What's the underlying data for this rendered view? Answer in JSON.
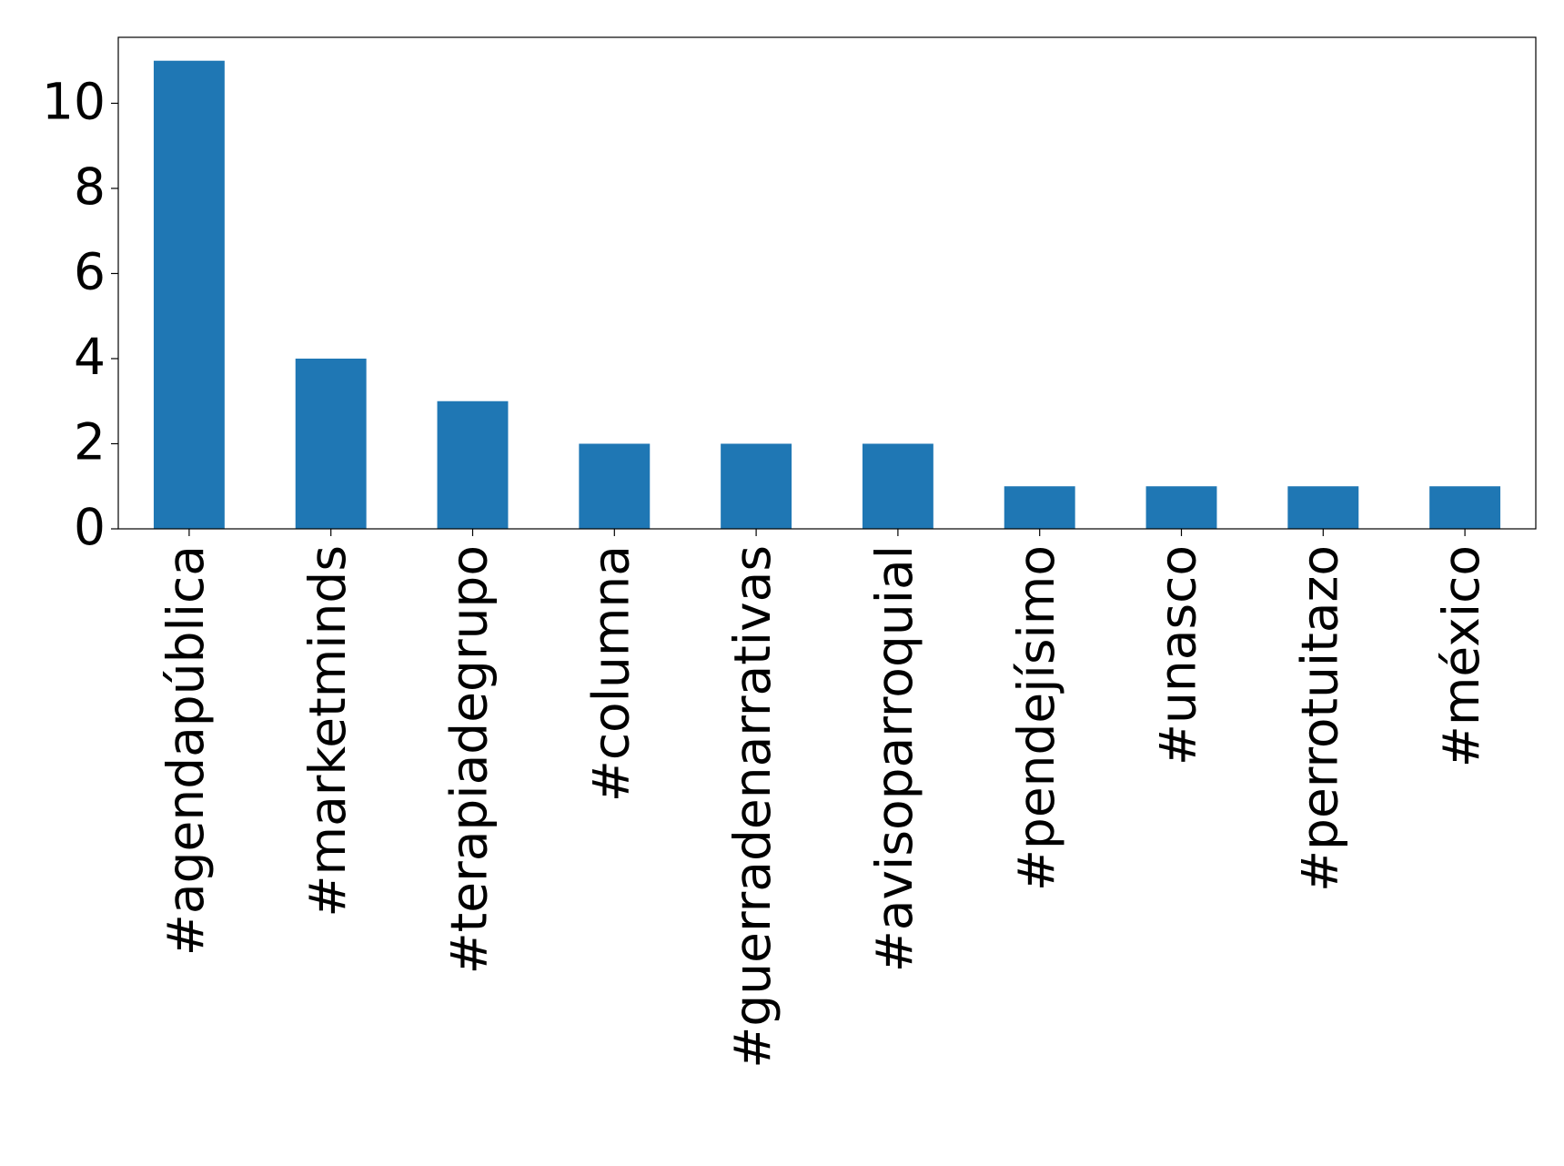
{
  "chart_data": {
    "type": "bar",
    "categories": [
      "#agendapública",
      "#marketminds",
      "#terapiadegrupo",
      "#columna",
      "#guerradenarrativas",
      "#avisoparroquial",
      "#pendejísimo",
      "#unasco",
      "#perrotuitazo",
      "#méxico"
    ],
    "values": [
      11,
      4,
      3,
      2,
      2,
      2,
      1,
      1,
      1,
      1
    ],
    "color": "#1f77b4",
    "ylim": [
      0,
      11.55
    ],
    "yticks": [
      0,
      2,
      4,
      6,
      8,
      10
    ],
    "grid": false
  }
}
